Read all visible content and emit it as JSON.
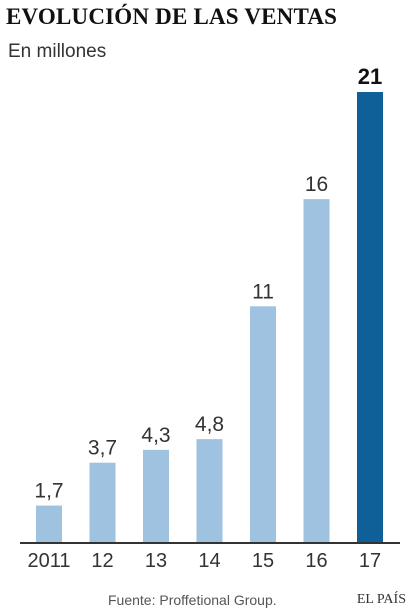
{
  "header": {
    "title": "EVOLUCIÓN DE LAS VENTAS",
    "subtitle": "En millones"
  },
  "footer": {
    "source": "Fuente: Proffetional Group.",
    "brand": "EL PAÍS"
  },
  "colors": {
    "bar": "#9ec2e0",
    "highlight": "#0f5f98",
    "axis": "#333333",
    "label": "#333333"
  },
  "chart_data": {
    "type": "bar",
    "title": "EVOLUCIÓN DE LAS VENTAS",
    "subtitle": "En millones",
    "xlabel": "",
    "ylabel": "",
    "categories": [
      "2011",
      "12",
      "13",
      "14",
      "15",
      "16",
      "17"
    ],
    "values": [
      1.7,
      3.7,
      4.3,
      4.8,
      11,
      16,
      21
    ],
    "value_labels": [
      "1,7",
      "3,7",
      "4,3",
      "4,8",
      "11",
      "16",
      "21"
    ],
    "highlight_index": 6,
    "ylim": [
      0,
      21
    ],
    "grid": false,
    "legend": "none"
  }
}
